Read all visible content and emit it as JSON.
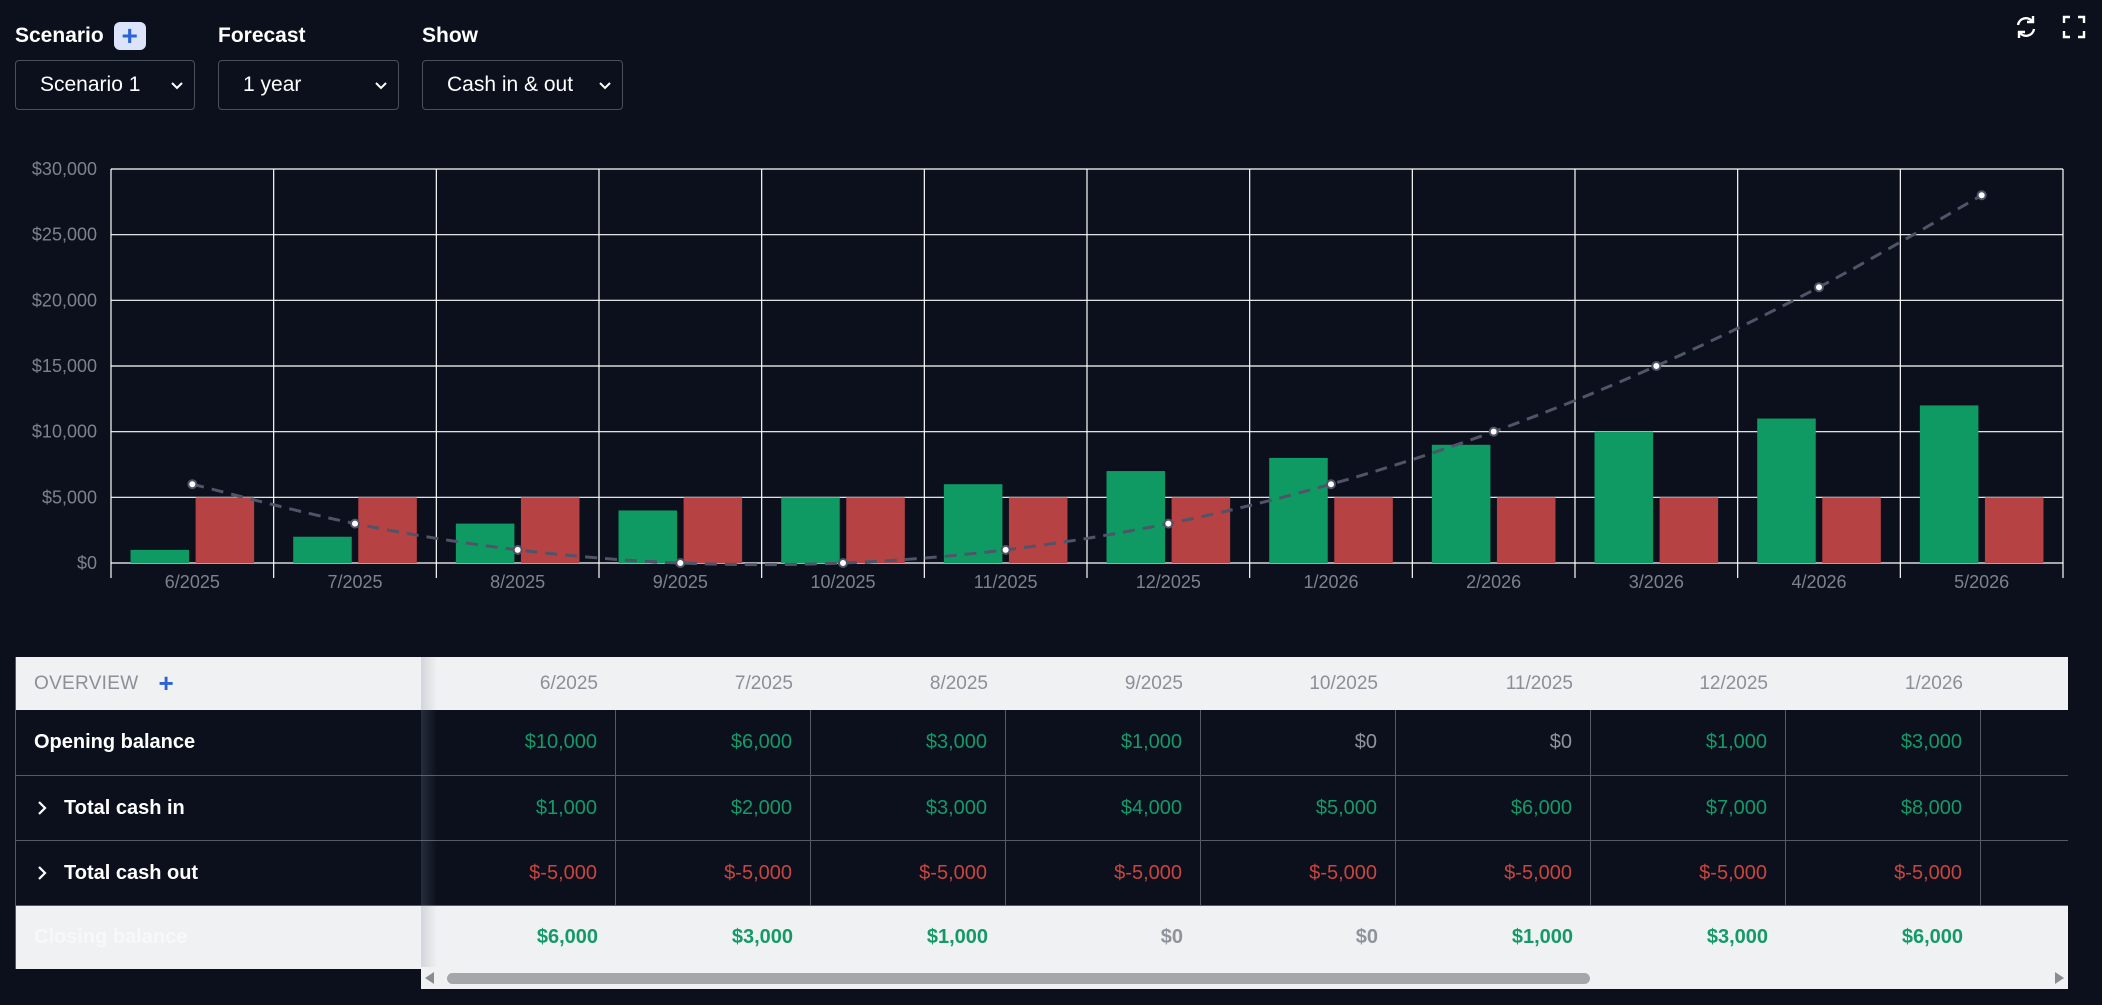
{
  "controls": {
    "scenario": {
      "label": "Scenario",
      "value": "Scenario 1"
    },
    "forecast": {
      "label": "Forecast",
      "value": "1 year"
    },
    "show": {
      "label": "Show",
      "value": "Cash in & out"
    }
  },
  "icons": {
    "refresh": "refresh-icon",
    "fullscreen": "fullscreen-icon"
  },
  "colors": {
    "cash_in": "#0f9a63",
    "cash_out": "#b64243",
    "balance_line": "#4f5468"
  },
  "chart_data": {
    "type": "bar",
    "categories": [
      "6/2025",
      "7/2025",
      "8/2025",
      "9/2025",
      "10/2025",
      "11/2025",
      "12/2025",
      "1/2026",
      "2/2026",
      "3/2026",
      "4/2026",
      "5/2026"
    ],
    "yticks": [
      "$0",
      "$5,000",
      "$10,000",
      "$15,000",
      "$20,000",
      "$25,000",
      "$30,000"
    ],
    "ylim": [
      0,
      30000
    ],
    "grid": true,
    "series": [
      {
        "type": "bar",
        "values": [
          1000,
          2000,
          3000,
          4000,
          5000,
          6000,
          7000,
          8000,
          9000,
          10000,
          11000,
          12000
        ]
      },
      {
        "type": "bar",
        "values": [
          5000,
          5000,
          5000,
          5000,
          5000,
          5000,
          5000,
          5000,
          5000,
          5000,
          5000,
          5000
        ]
      },
      {
        "type": "line",
        "values": [
          6000,
          3000,
          1000,
          0,
          0,
          1000,
          3000,
          6000,
          10000,
          15000,
          21000,
          28000
        ]
      }
    ]
  },
  "table": {
    "header": "OVERVIEW",
    "months": [
      "6/2025",
      "7/2025",
      "8/2025",
      "9/2025",
      "10/2025",
      "11/2025",
      "12/2025",
      "1/2026"
    ],
    "rows": [
      {
        "label": "Opening balance",
        "values": [
          "$10,000",
          "$6,000",
          "$3,000",
          "$1,000",
          "$0",
          "$0",
          "$1,000",
          "$3,000"
        ]
      },
      {
        "label": "Total cash in",
        "values": [
          "$1,000",
          "$2,000",
          "$3,000",
          "$4,000",
          "$5,000",
          "$6,000",
          "$7,000",
          "$8,000"
        ]
      },
      {
        "label": "Total cash out",
        "values": [
          "$-5,000",
          "$-5,000",
          "$-5,000",
          "$-5,000",
          "$-5,000",
          "$-5,000",
          "$-5,000",
          "$-5,000"
        ]
      }
    ],
    "closing": {
      "label": "Closing balance",
      "values": [
        "$6,000",
        "$3,000",
        "$1,000",
        "$0",
        "$0",
        "$1,000",
        "$3,000",
        "$6,000"
      ]
    }
  }
}
